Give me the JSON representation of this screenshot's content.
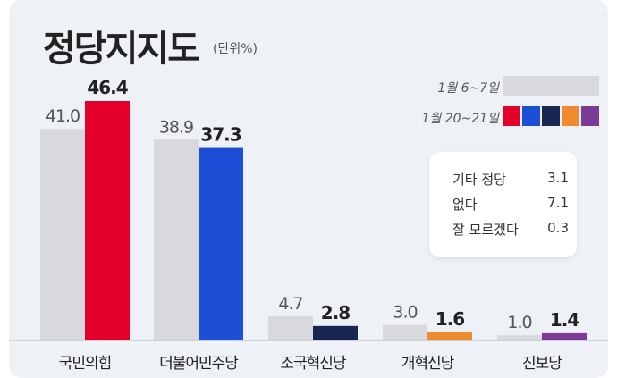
{
  "title": "정당지지도",
  "unit": "(단위%)",
  "chart_data": {
    "type": "bar",
    "categories": [
      "국민의힘",
      "더불어민주당",
      "조국혁신당",
      "개혁신당",
      "진보당"
    ],
    "series": [
      {
        "name": "1월 6~7일",
        "values": [
          41.0,
          38.9,
          4.7,
          3.0,
          1.0
        ],
        "color": "#d7d9df"
      },
      {
        "name": "1월 20~21일",
        "values": [
          46.4,
          37.3,
          2.8,
          1.6,
          1.4
        ],
        "colors": [
          "#e4002b",
          "#1c4fd6",
          "#172653",
          "#ef8a2e",
          "#7a3a96"
        ]
      }
    ],
    "labels_old": [
      "41.0",
      "38.9",
      "4.7",
      "3.0",
      "1.0"
    ],
    "labels_new": [
      "46.4",
      "37.3",
      "2.8",
      "1.6",
      "1.4"
    ]
  },
  "other_responses": [
    {
      "label": "기타 정당",
      "value": "3.1"
    },
    {
      "label": "없다",
      "value": "7.1"
    },
    {
      "label": "잘 모르겠다",
      "value": "0.3"
    }
  ]
}
